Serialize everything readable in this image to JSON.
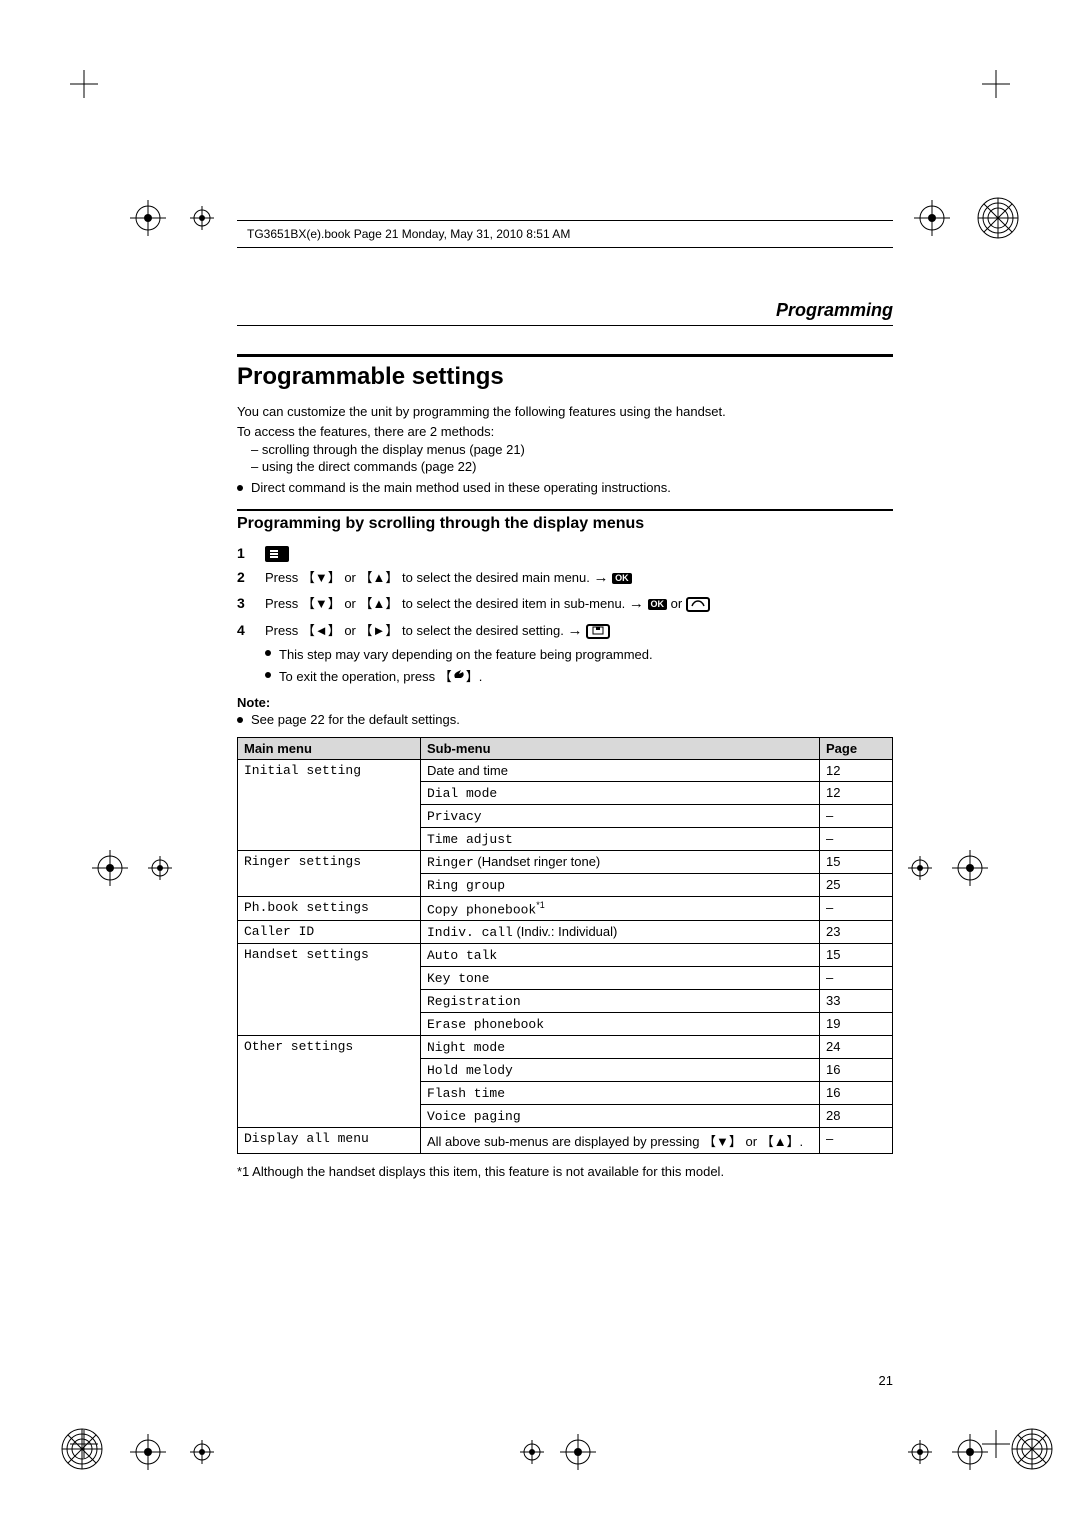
{
  "header": {
    "book_stamp": "TG3651BX(e).book  Page 21  Monday, May 31, 2010  8:51 AM"
  },
  "section_label": "Programming",
  "title": "Programmable settings",
  "intro": {
    "line1": "You can customize the unit by programming the following features using the handset.",
    "line2": "To access the features, there are 2 methods:",
    "dash1": "scrolling through the display menus (page 21)",
    "dash2": "using the direct commands (page 22)",
    "dot1": "Direct command is the main method used in these operating instructions."
  },
  "subtitle": "Programming by scrolling through the display menus",
  "steps": {
    "s2a": "Press ",
    "s2b": " or ",
    "s2c": " to select the desired main menu. ",
    "s3a": "Press ",
    "s3b": " or ",
    "s3c": " to select the desired item in sub-menu. ",
    "s3d": " or ",
    "s4a": "Press ",
    "s4b": " or ",
    "s4c": " to select the desired setting. ",
    "s4n1": "This step may vary depending on the feature being programmed.",
    "s4n2": "To exit the operation, press "
  },
  "note": {
    "label": "Note:",
    "item": "See page 22 for the default settings."
  },
  "table": {
    "head": {
      "c1": "Main menu",
      "c2": "Sub-menu",
      "c3": "Page"
    },
    "rows": [
      {
        "main": "Initial setting",
        "main_mono": true,
        "rowspan": 4,
        "sub_mono": "",
        "sub_regular": "Date and time",
        "page": "12"
      },
      {
        "sub_mono": "Dial mode",
        "sub_regular": "",
        "page": "12"
      },
      {
        "sub_mono": "Privacy",
        "sub_regular": "",
        "page": "–"
      },
      {
        "sub_mono": "Time adjust",
        "sub_regular": "",
        "page": "–"
      },
      {
        "main": "Ringer settings",
        "main_mono": true,
        "rowspan": 2,
        "sub_mono": "Ringer",
        "sub_regular": " (Handset ringer tone)",
        "page": "15"
      },
      {
        "sub_mono": "Ring group",
        "sub_regular": "",
        "page": "25"
      },
      {
        "main": "Ph.book settings",
        "main_mono": true,
        "rowspan": 1,
        "sub_mono": "Copy phonebook",
        "sub_regular": "",
        "sup": "*1",
        "page": "–"
      },
      {
        "main": "Caller ID",
        "main_mono": true,
        "rowspan": 1,
        "sub_mono": "Indiv. call",
        "sub_regular": " (Indiv.: Individual)",
        "page": "23"
      },
      {
        "main": "Handset settings",
        "main_mono": true,
        "rowspan": 4,
        "sub_mono": "Auto talk",
        "sub_regular": "",
        "page": "15"
      },
      {
        "sub_mono": "Key tone",
        "sub_regular": "",
        "page": "–"
      },
      {
        "sub_mono": "Registration",
        "sub_regular": "",
        "page": "33"
      },
      {
        "sub_mono": "Erase phonebook",
        "sub_regular": "",
        "page": "19"
      },
      {
        "main": "Other settings",
        "main_mono": true,
        "rowspan": 4,
        "sub_mono": "Night mode",
        "sub_regular": "",
        "page": "24"
      },
      {
        "sub_mono": "Hold melody",
        "sub_regular": "",
        "page": "16"
      },
      {
        "sub_mono": "Flash time",
        "sub_regular": "",
        "page": "16"
      },
      {
        "sub_mono": "Voice paging",
        "sub_regular": "",
        "page": "28"
      },
      {
        "main": "Display all menu",
        "main_mono": true,
        "rowspan": 1,
        "sub_mono": "",
        "sub_regular": "All above sub-menus are displayed by pressing 【▼】 or 【▲】.",
        "page": "–"
      }
    ]
  },
  "footnote": "*1 Although the handset displays this item, this feature is not available for this model.",
  "page_number": "21",
  "icons": {
    "ok_label": "OK"
  }
}
